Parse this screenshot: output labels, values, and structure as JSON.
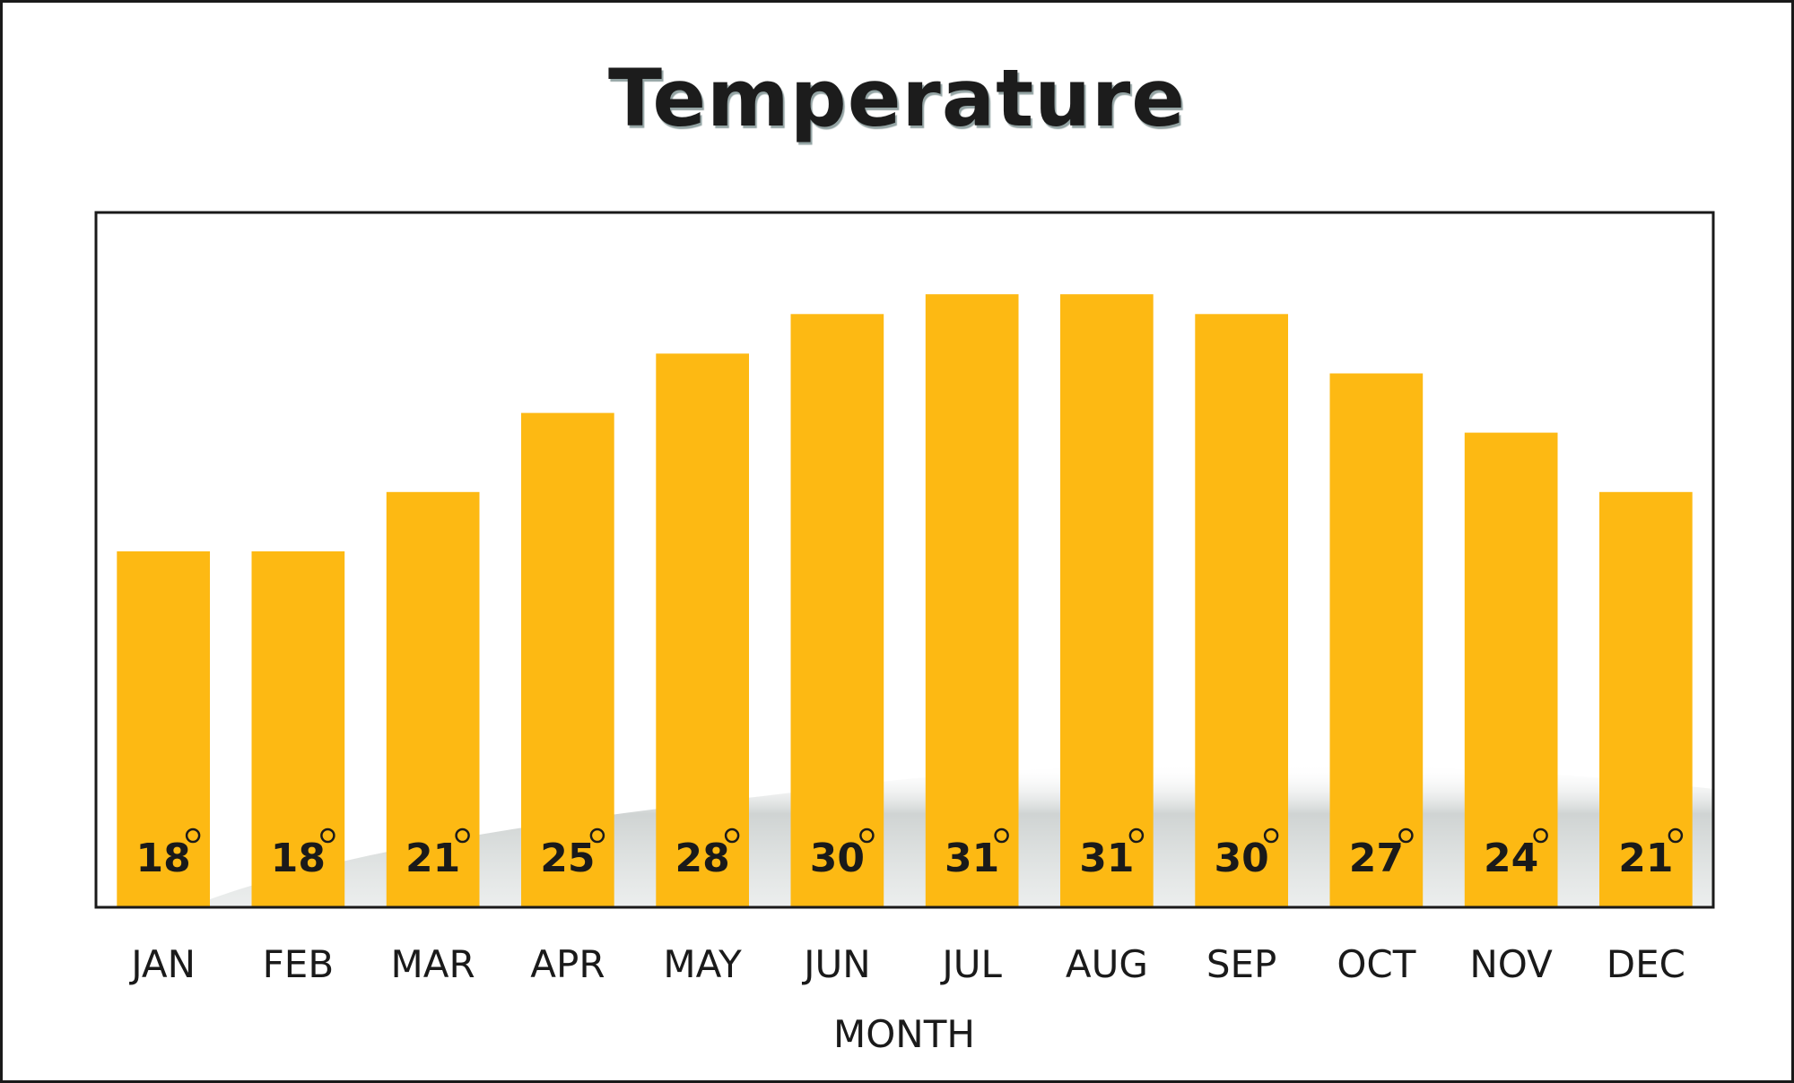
{
  "chart_data": {
    "type": "bar",
    "title": "Temperature",
    "xlabel": "MONTH",
    "ylabel": "",
    "categories": [
      "JAN",
      "FEB",
      "MAR",
      "APR",
      "MAY",
      "JUN",
      "JUL",
      "AUG",
      "SEP",
      "OCT",
      "NOV",
      "DEC"
    ],
    "values": [
      18,
      18,
      21,
      25,
      28,
      30,
      31,
      31,
      30,
      27,
      24,
      21
    ],
    "data_labels": [
      "18",
      "18",
      "21",
      "25",
      "28",
      "30",
      "31",
      "31",
      "30",
      "27",
      "24",
      "21"
    ],
    "unit_symbol": "°",
    "ylim": [
      0,
      35
    ],
    "grid": false,
    "legend": "none",
    "colors": {
      "bar": "#FDB913",
      "frame": "#1a1a1a",
      "text": "#1a1a1a",
      "title": "#1c1c1c"
    }
  }
}
